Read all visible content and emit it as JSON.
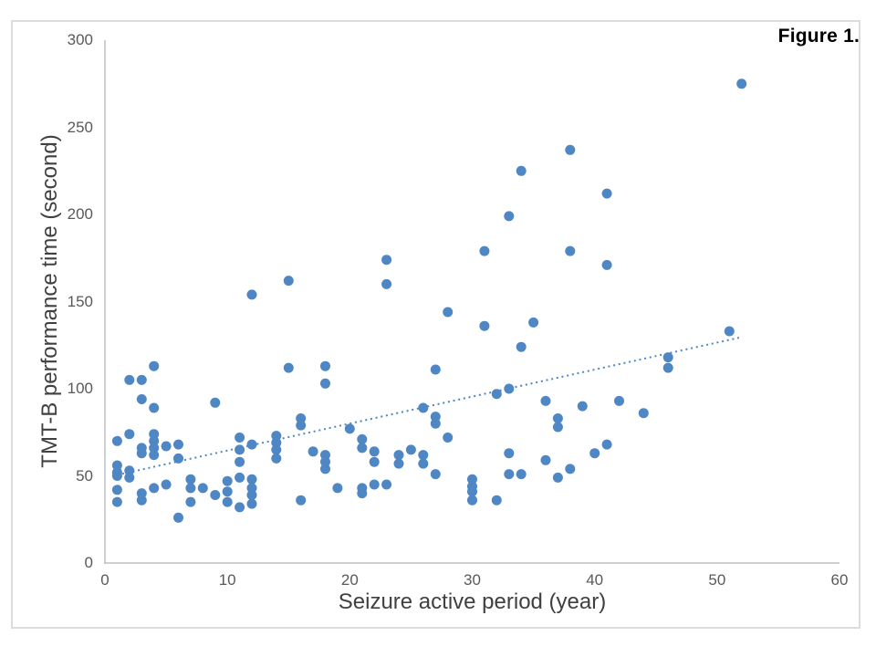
{
  "figure_label": "Figure 1.",
  "colors": {
    "marker": "#4F86C4",
    "trendline": "#4F86C4",
    "axis_line": "#BFBFBF",
    "tick_text": "#595959",
    "axis_title_text": "#404040",
    "figure_label_text": "#000000",
    "frame_border": "#DCDCDC"
  },
  "chart_data": {
    "type": "scatter",
    "title": "Figure 1.",
    "xlabel": "Seizure active period (year)",
    "ylabel": "TMT-B performance time (second)",
    "xlim": [
      0,
      60
    ],
    "ylim": [
      0,
      300
    ],
    "x_ticks": [
      0,
      10,
      20,
      30,
      40,
      50,
      60
    ],
    "y_ticks": [
      0,
      50,
      100,
      150,
      200,
      250,
      300
    ],
    "grid": false,
    "legend": "none",
    "marker_diameter_px": 11,
    "points": [
      [
        1,
        70
      ],
      [
        1,
        56
      ],
      [
        1,
        52
      ],
      [
        1,
        50
      ],
      [
        1,
        42
      ],
      [
        1,
        35
      ],
      [
        2,
        105
      ],
      [
        2,
        74
      ],
      [
        2,
        53
      ],
      [
        2,
        49
      ],
      [
        3,
        105
      ],
      [
        3,
        94
      ],
      [
        3,
        66
      ],
      [
        3,
        63
      ],
      [
        3,
        40
      ],
      [
        3,
        36
      ],
      [
        4,
        113
      ],
      [
        4,
        89
      ],
      [
        4,
        74
      ],
      [
        4,
        70
      ],
      [
        4,
        66
      ],
      [
        4,
        62
      ],
      [
        4,
        43
      ],
      [
        5,
        67
      ],
      [
        5,
        45
      ],
      [
        6,
        68
      ],
      [
        6,
        60
      ],
      [
        6,
        26
      ],
      [
        7,
        48
      ],
      [
        7,
        43
      ],
      [
        7,
        35
      ],
      [
        8,
        43
      ],
      [
        9,
        92
      ],
      [
        9,
        39
      ],
      [
        10,
        47
      ],
      [
        10,
        41
      ],
      [
        10,
        35
      ],
      [
        11,
        72
      ],
      [
        11,
        65
      ],
      [
        11,
        58
      ],
      [
        11,
        49
      ],
      [
        11,
        32
      ],
      [
        12,
        154
      ],
      [
        12,
        68
      ],
      [
        12,
        48
      ],
      [
        12,
        43
      ],
      [
        12,
        39
      ],
      [
        12,
        34
      ],
      [
        14,
        73
      ],
      [
        14,
        69
      ],
      [
        14,
        65
      ],
      [
        14,
        60
      ],
      [
        15,
        162
      ],
      [
        15,
        112
      ],
      [
        16,
        83
      ],
      [
        16,
        79
      ],
      [
        16,
        36
      ],
      [
        17,
        64
      ],
      [
        18,
        113
      ],
      [
        18,
        103
      ],
      [
        18,
        62
      ],
      [
        18,
        58
      ],
      [
        18,
        54
      ],
      [
        19,
        43
      ],
      [
        20,
        77
      ],
      [
        21,
        71
      ],
      [
        21,
        66
      ],
      [
        21,
        43
      ],
      [
        21,
        40
      ],
      [
        22,
        64
      ],
      [
        22,
        58
      ],
      [
        22,
        45
      ],
      [
        23,
        174
      ],
      [
        23,
        160
      ],
      [
        23,
        45
      ],
      [
        24,
        62
      ],
      [
        24,
        57
      ],
      [
        25,
        65
      ],
      [
        26,
        89
      ],
      [
        26,
        62
      ],
      [
        26,
        57
      ],
      [
        27,
        111
      ],
      [
        27,
        84
      ],
      [
        27,
        80
      ],
      [
        27,
        51
      ],
      [
        28,
        144
      ],
      [
        28,
        72
      ],
      [
        30,
        48
      ],
      [
        30,
        44
      ],
      [
        30,
        41
      ],
      [
        30,
        36
      ],
      [
        31,
        179
      ],
      [
        31,
        136
      ],
      [
        32,
        97
      ],
      [
        32,
        36
      ],
      [
        33,
        199
      ],
      [
        33,
        100
      ],
      [
        33,
        63
      ],
      [
        33,
        51
      ],
      [
        34,
        225
      ],
      [
        34,
        124
      ],
      [
        34,
        51
      ],
      [
        35,
        138
      ],
      [
        36,
        93
      ],
      [
        36,
        59
      ],
      [
        37,
        83
      ],
      [
        37,
        78
      ],
      [
        37,
        49
      ],
      [
        38,
        237
      ],
      [
        38,
        179
      ],
      [
        38,
        54
      ],
      [
        39,
        90
      ],
      [
        40,
        63
      ],
      [
        41,
        212
      ],
      [
        41,
        171
      ],
      [
        41,
        68
      ],
      [
        42,
        93
      ],
      [
        44,
        86
      ],
      [
        46,
        118
      ],
      [
        46,
        112
      ],
      [
        51,
        133
      ],
      [
        52,
        275
      ]
    ],
    "trendline": {
      "style": "dotted",
      "slope": 1.55,
      "intercept": 49,
      "x_start": 1,
      "x_end": 52
    }
  }
}
